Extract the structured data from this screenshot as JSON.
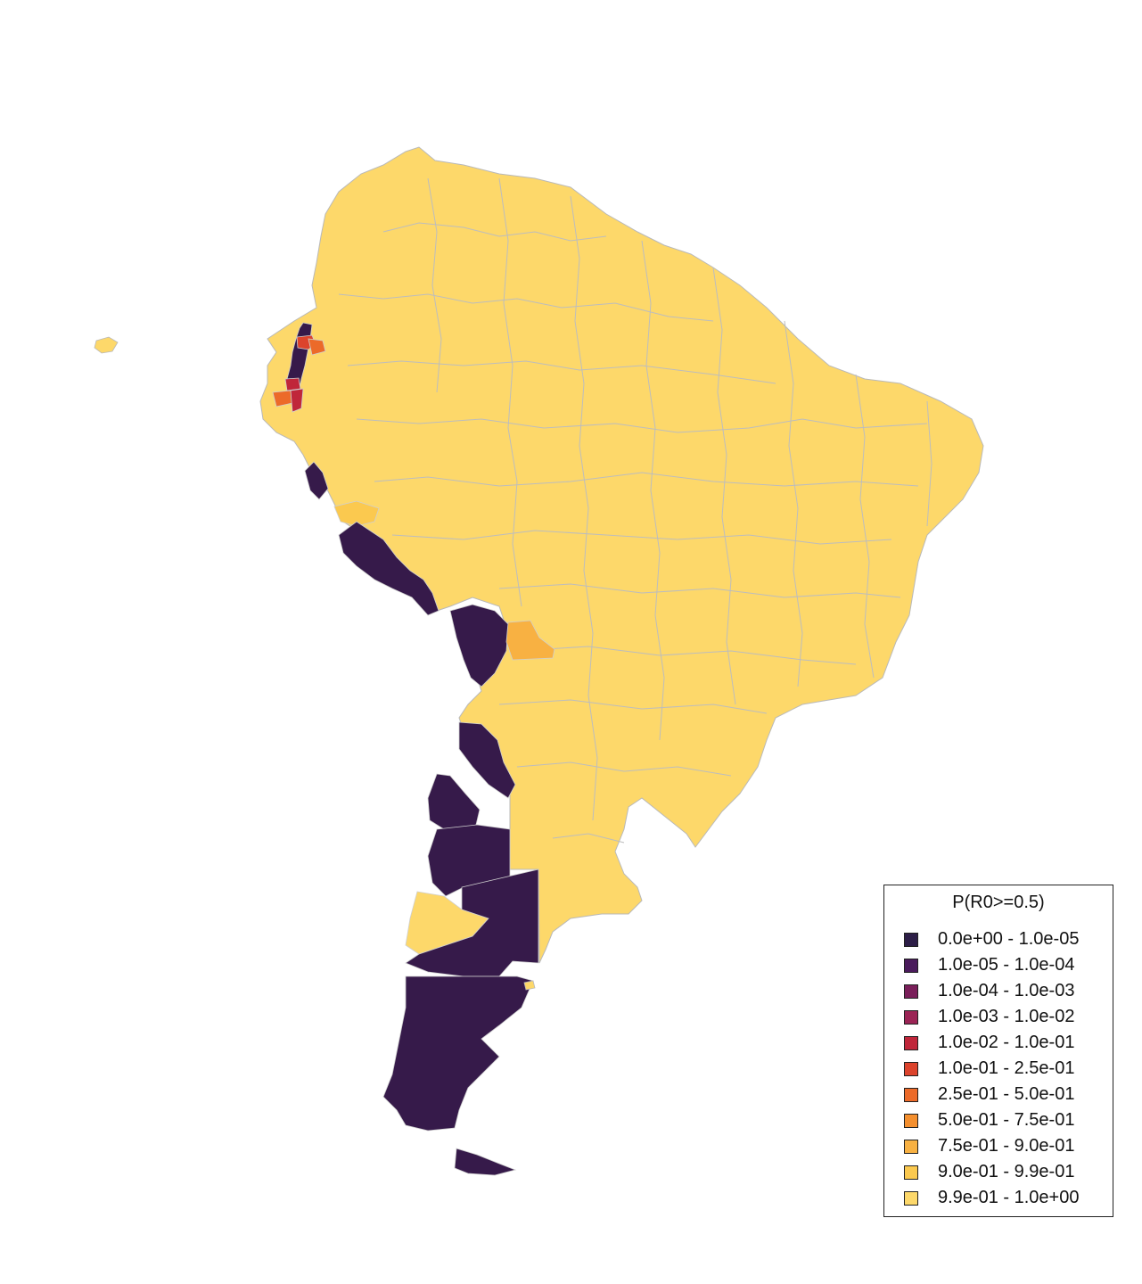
{
  "legend": {
    "title": "P(R0>=0.5)",
    "items": [
      {
        "label": "0.0e+00 - 1.0e-05",
        "color": "#2d1e47"
      },
      {
        "label": "1.0e-05 - 1.0e-04",
        "color": "#4a1b5c"
      },
      {
        "label": "1.0e-04 - 1.0e-03",
        "color": "#7a1f5a"
      },
      {
        "label": "1.0e-03 - 1.0e-02",
        "color": "#9b2455"
      },
      {
        "label": "1.0e-02 - 1.0e-01",
        "color": "#c0263a"
      },
      {
        "label": "1.0e-01 - 2.5e-01",
        "color": "#dc432c"
      },
      {
        "label": "2.5e-01 - 5.0e-01",
        "color": "#ec6a29"
      },
      {
        "label": "5.0e-01 - 7.5e-01",
        "color": "#f48f2e"
      },
      {
        "label": "7.5e-01 - 9.0e-01",
        "color": "#f8b142"
      },
      {
        "label": "9.0e-01 - 9.9e-01",
        "color": "#fbc94f"
      },
      {
        "label": "9.9e-01 - 1.0e+00",
        "color": "#fdd86a"
      }
    ]
  },
  "colors": {
    "land_high": "#fdd86a",
    "land_low": "#361a4a",
    "border": "#b9b9b9",
    "mid_orange": "#f8b142",
    "red": "#c0263a",
    "orange_red": "#dc432c",
    "orange": "#ec6a29"
  }
}
